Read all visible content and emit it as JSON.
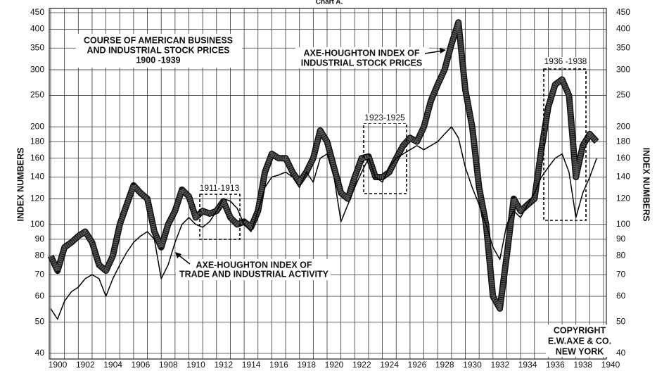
{
  "chart_data": {
    "type": "line",
    "title": "Chart A.",
    "ylabel": "INDEX NUMBERS",
    "log_scale": true,
    "grid": true,
    "xlim": [
      1900,
      1940
    ],
    "xticks": [
      1900,
      1902,
      1904,
      1906,
      1908,
      1910,
      1912,
      1914,
      1916,
      1918,
      1920,
      1922,
      1924,
      1926,
      1928,
      1930,
      1932,
      1934,
      1936,
      1938,
      1940
    ],
    "ylim": [
      40,
      450
    ],
    "yticks": [
      40,
      50,
      60,
      70,
      80,
      90,
      100,
      120,
      140,
      160,
      180,
      200,
      250,
      300,
      350,
      400,
      450
    ],
    "annotations": {
      "heading": [
        "COURSE OF AMERICAN BUSINESS",
        "AND INDUSTRIAL STOCK PRICES",
        "1900 -1939"
      ],
      "periods": [
        "1911-1913",
        "1923-1925",
        "1936 -1938"
      ],
      "copyright": [
        "COPYRIGHT",
        "E.W.AXE & CO.",
        "NEW YORK"
      ]
    },
    "x": [
      1900,
      1900.5,
      1901,
      1901.5,
      1902,
      1902.5,
      1903,
      1903.5,
      1904,
      1904.5,
      1905,
      1905.5,
      1906,
      1906.5,
      1907,
      1907.5,
      1908,
      1908.5,
      1909,
      1909.5,
      1910,
      1910.5,
      1911,
      1911.5,
      1912,
      1912.5,
      1913,
      1913.5,
      1914,
      1914.5,
      1915,
      1915.5,
      1916,
      1916.5,
      1917,
      1917.5,
      1918,
      1918.5,
      1919,
      1919.5,
      1920,
      1920.5,
      1921,
      1921.5,
      1922,
      1922.5,
      1923,
      1923.5,
      1924,
      1924.5,
      1925,
      1925.5,
      1926,
      1926.5,
      1927,
      1927.5,
      1928,
      1928.5,
      1929,
      1929.5,
      1930,
      1930.5,
      1931,
      1931.5,
      1932,
      1932.5,
      1933,
      1933.5,
      1934,
      1934.5,
      1935,
      1935.5,
      1936,
      1936.5,
      1937,
      1937.5,
      1938,
      1938.5,
      1939,
      1939.5
    ],
    "series": [
      {
        "name": [
          "AXE-HOUGHTON INDEX OF",
          "INDUSTRIAL STOCK PRICES"
        ],
        "color": "#555555",
        "values": [
          80,
          72,
          85,
          88,
          92,
          95,
          88,
          75,
          72,
          80,
          100,
          115,
          132,
          125,
          120,
          95,
          85,
          100,
          110,
          128,
          122,
          105,
          110,
          108,
          110,
          118,
          105,
          100,
          102,
          98,
          110,
          145,
          165,
          160,
          160,
          145,
          135,
          145,
          160,
          195,
          180,
          150,
          125,
          120,
          140,
          160,
          162,
          140,
          140,
          145,
          160,
          175,
          185,
          180,
          200,
          240,
          270,
          300,
          360,
          420,
          260,
          200,
          130,
          100,
          60,
          55,
          80,
          120,
          110,
          115,
          120,
          170,
          230,
          270,
          280,
          250,
          140,
          175,
          190,
          180
        ]
      },
      {
        "name": [
          "AXE-HOUGHTON INDEX OF",
          "TRADE AND INDUSTRIAL ACTIVITY"
        ],
        "color": "#000000",
        "values": [
          55,
          51,
          58,
          62,
          64,
          68,
          70,
          68,
          60,
          68,
          75,
          82,
          88,
          92,
          95,
          90,
          68,
          75,
          88,
          100,
          105,
          100,
          98,
          102,
          110,
          120,
          118,
          112,
          100,
          95,
          110,
          130,
          140,
          142,
          145,
          140,
          130,
          145,
          135,
          160,
          165,
          140,
          102,
          115,
          130,
          145,
          160,
          140,
          135,
          150,
          160,
          165,
          170,
          175,
          170,
          175,
          180,
          190,
          200,
          185,
          150,
          130,
          115,
          100,
          85,
          78,
          100,
          110,
          105,
          115,
          125,
          140,
          150,
          160,
          165,
          145,
          105,
          125,
          140,
          160
        ]
      }
    ]
  }
}
